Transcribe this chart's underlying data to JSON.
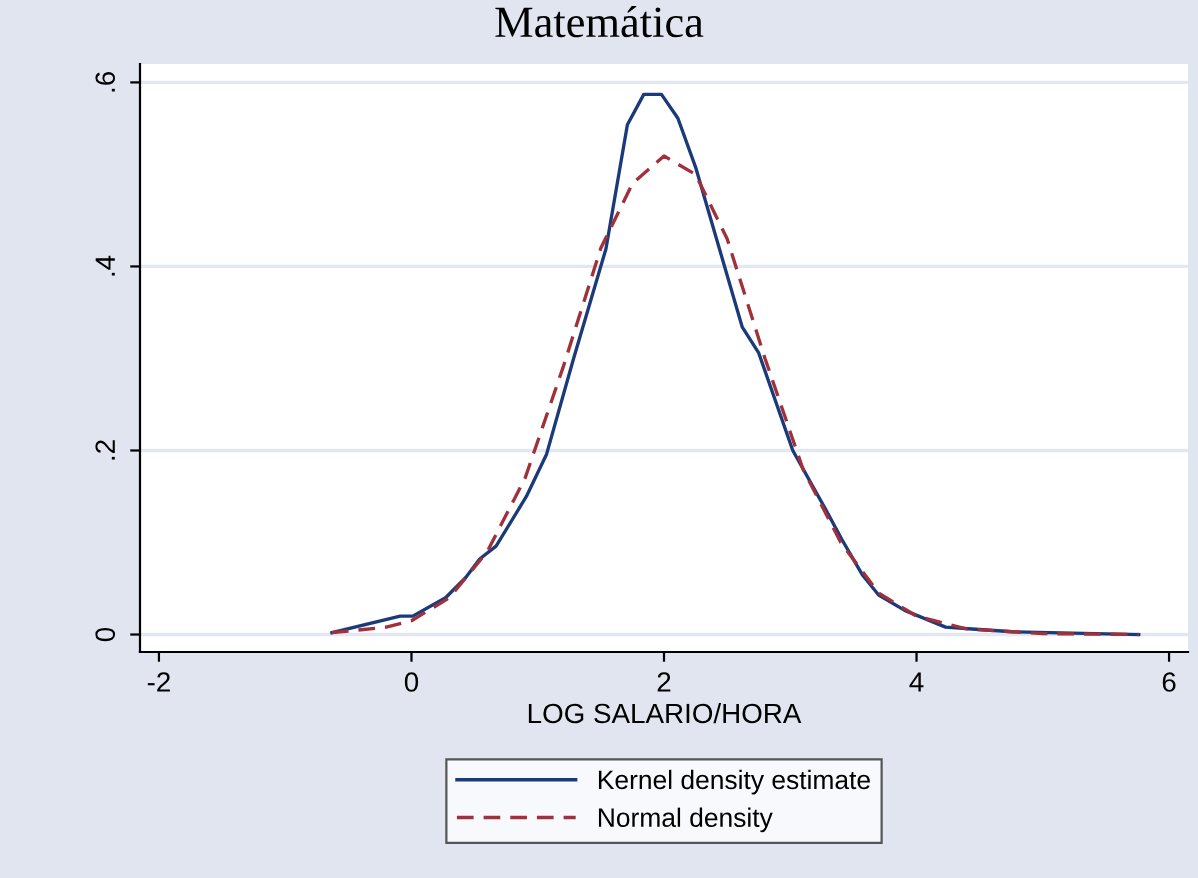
{
  "chart_data": {
    "type": "line",
    "title": "Matemática",
    "xlabel": "LOG SALARIO/HORA",
    "xlim": [
      -2.15,
      6.15
    ],
    "xticks": [
      -2,
      0,
      2,
      4,
      6
    ],
    "ylim": [
      -0.019,
      0.62
    ],
    "yticks": [
      0,
      {
        "value": 0.2,
        "label": ".2"
      },
      {
        "value": 0.4,
        "label": ".4"
      },
      {
        "value": 0.6,
        "label": ".6"
      }
    ],
    "grid": "y",
    "legend": "bottom",
    "tick_labels": true,
    "series": [
      {
        "name": "Kernel density estimate",
        "color": "#1a3a7a",
        "line_style": "solid",
        "x": [
          -0.63,
          -0.09,
          0.01,
          0.27,
          0.43,
          0.54,
          0.67,
          0.91,
          1.07,
          1.28,
          1.54,
          1.71,
          1.84,
          1.98,
          2.11,
          2.25,
          2.62,
          2.75,
          3.02,
          3.28,
          3.41,
          3.57,
          3.7,
          3.91,
          4.23,
          4.44,
          4.76,
          5.76
        ],
        "values": [
          0.002,
          0.02,
          0.02,
          0.04,
          0.062,
          0.082,
          0.096,
          0.15,
          0.196,
          0.298,
          0.419,
          0.554,
          0.587,
          0.587,
          0.561,
          0.508,
          0.334,
          0.306,
          0.2,
          0.136,
          0.103,
          0.065,
          0.043,
          0.026,
          0.008,
          0.006,
          0.003,
          0.0
        ]
      },
      {
        "name": "Normal density",
        "color": "#a0303a",
        "line_style": "dashed",
        "x": [
          -0.63,
          -0.2,
          0.0,
          0.3,
          0.6,
          0.9,
          1.2,
          1.5,
          1.75,
          2.0,
          2.25,
          2.5,
          2.8,
          3.1,
          3.4,
          3.7,
          4.0,
          4.4,
          5.0,
          5.76
        ],
        "values": [
          0.002,
          0.008,
          0.015,
          0.04,
          0.09,
          0.17,
          0.29,
          0.42,
          0.49,
          0.52,
          0.5,
          0.43,
          0.3,
          0.18,
          0.1,
          0.045,
          0.02,
          0.006,
          0.001,
          0.0
        ]
      }
    ]
  }
}
